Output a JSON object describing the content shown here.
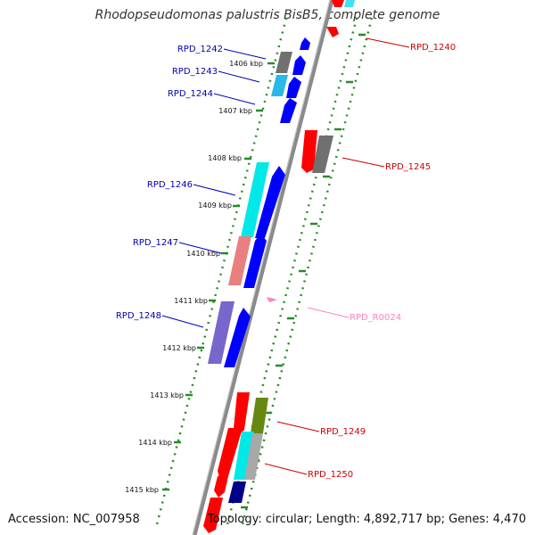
{
  "title": "Rhodopseudomonas palustris BisB5, complete genome",
  "footer": {
    "accession": "Accession: NC_007958",
    "topology": "Topology: circular; Length: 4,892,717 bp; Genes: 4,470"
  },
  "colors": {
    "backbone": "#8a8a8a",
    "tick": "#2a8a2a",
    "left_label": "#0000b4",
    "right_label": "#cc0000",
    "rna_label": "#ff80c0"
  },
  "kbp_labels": [
    "1406 kbp",
    "1407 kbp",
    "1408 kbp",
    "1409 kbp",
    "1410 kbp",
    "1411 kbp",
    "1412 kbp",
    "1413 kbp",
    "1414 kbp",
    "1415 kbp"
  ],
  "gene_labels_left": [
    "RPD_1242",
    "RPD_1243",
    "RPD_1244",
    "RPD_1246",
    "RPD_1247",
    "RPD_1248"
  ],
  "gene_labels_right": [
    "RPD_1240",
    "RPD_1245",
    "RPD_R0024",
    "RPD_1249",
    "RPD_1250"
  ],
  "icons": [
    "gene-arrow-icon",
    "gene-block-icon",
    "rna-marker-icon"
  ]
}
